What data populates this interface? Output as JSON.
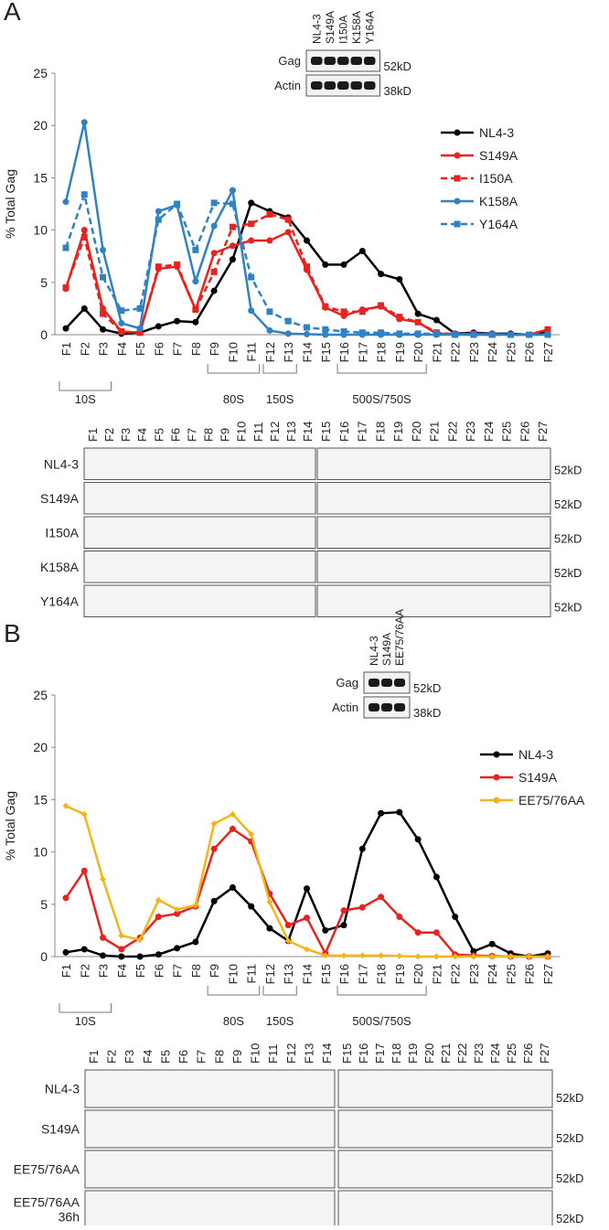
{
  "chart_data": [
    {
      "type": "line",
      "ylabel": "% Total Gag",
      "categories": [
        "F1",
        "F2",
        "F3",
        "F4",
        "F5",
        "F6",
        "F7",
        "F8",
        "F9",
        "F10",
        "F11",
        "F12",
        "F13",
        "F14",
        "F15",
        "F16",
        "F17",
        "F18",
        "F19",
        "F20",
        "F21",
        "F22",
        "F23",
        "F24",
        "F25",
        "F26",
        "F27"
      ],
      "ylim": [
        0,
        25
      ],
      "yticks": [
        0,
        5,
        10,
        15,
        20,
        25
      ],
      "series": [
        {
          "name": "NL4-3",
          "color": "#000000",
          "dash": false,
          "marker": "circle",
          "values": [
            0.6,
            2.5,
            0.5,
            0.1,
            0.2,
            0.8,
            1.3,
            1.2,
            4.2,
            7.2,
            12.6,
            11.8,
            11.2,
            9,
            6.7,
            6.7,
            8,
            5.8,
            5.3,
            2,
            1.4,
            0.1,
            0.2,
            0.1,
            0.1,
            0,
            0.3
          ]
        },
        {
          "name": "S149A",
          "color": "#e8231f",
          "dash": false,
          "marker": "circle",
          "values": [
            4.4,
            10,
            2.5,
            0.3,
            0.2,
            6.3,
            6.5,
            2.4,
            7.8,
            8.5,
            9,
            9,
            9.8,
            6.2,
            2.6,
            1.8,
            2.4,
            2.7,
            1.5,
            1.2,
            0.1,
            0.05,
            0.1,
            0.05,
            0,
            0,
            0.5
          ]
        },
        {
          "name": "I150A",
          "color": "#e8231f",
          "dash": true,
          "marker": "square",
          "values": [
            4.5,
            9.3,
            2,
            0.3,
            0.2,
            6.5,
            6.7,
            2.4,
            6,
            10.3,
            10.6,
            11.5,
            11,
            6.5,
            2.7,
            2.2,
            2.2,
            2.8,
            1.7,
            1.2,
            0.2,
            0.05,
            0,
            0,
            0,
            0,
            0.5
          ]
        },
        {
          "name": "K158A",
          "color": "#2f82c4",
          "dash": false,
          "marker": "circle",
          "values": [
            12.7,
            20.3,
            8.1,
            1.1,
            0.6,
            11.8,
            12.4,
            5.1,
            10.4,
            13.8,
            2.3,
            0.4,
            0.1,
            0.05,
            0,
            0,
            0,
            0,
            0,
            0,
            0,
            0,
            0,
            0,
            0,
            0,
            0
          ]
        },
        {
          "name": "Y164A",
          "color": "#2f82c4",
          "dash": true,
          "marker": "square",
          "values": [
            8.3,
            13.4,
            5.5,
            2.3,
            2.5,
            11,
            12.5,
            8.1,
            12.6,
            12.5,
            5.5,
            2.2,
            1.3,
            0.7,
            0.5,
            0.3,
            0.2,
            0.2,
            0.1,
            0.1,
            0.1,
            0,
            0,
            0,
            0,
            0,
            0
          ]
        }
      ]
    },
    {
      "type": "line",
      "ylabel": "% Total Gag",
      "categories": [
        "F1",
        "F2",
        "F3",
        "F4",
        "F5",
        "F6",
        "F7",
        "F8",
        "F9",
        "F10",
        "F11",
        "F12",
        "F13",
        "F14",
        "F15",
        "F16",
        "F17",
        "F18",
        "F19",
        "F20",
        "F21",
        "F22",
        "F23",
        "F24",
        "F25",
        "F26",
        "F27"
      ],
      "ylim": [
        0,
        25
      ],
      "yticks": [
        0,
        5,
        10,
        15,
        20,
        25
      ],
      "series": [
        {
          "name": "NL4-3",
          "color": "#000000",
          "dash": false,
          "marker": "circle",
          "values": [
            0.4,
            0.7,
            0.1,
            0,
            0,
            0.2,
            0.8,
            1.4,
            5.3,
            6.6,
            4.8,
            2.7,
            1.5,
            6.5,
            2.5,
            3,
            10.3,
            13.7,
            13.8,
            11.2,
            7.6,
            3.8,
            0.5,
            1.2,
            0.3,
            0,
            0.3
          ]
        },
        {
          "name": "S149A",
          "color": "#e8231f",
          "dash": false,
          "marker": "circle",
          "values": [
            5.6,
            8.2,
            1.8,
            0.7,
            1.8,
            3.8,
            4.1,
            4.8,
            10.3,
            12.2,
            11,
            6,
            3,
            3.7,
            0.3,
            4.4,
            4.7,
            5.7,
            3.8,
            2.3,
            2.3,
            0.2,
            0.1,
            0.05,
            0,
            0,
            0
          ]
        },
        {
          "name": "EE75/76AA",
          "color": "#f2b51a",
          "dash": false,
          "marker": "diamond",
          "values": [
            14.4,
            13.6,
            7.4,
            2,
            1.6,
            5.4,
            4.5,
            4.9,
            12.7,
            13.6,
            11.7,
            5.2,
            1.5,
            0.7,
            0.1,
            0.1,
            0.1,
            0.1,
            0.05,
            0,
            0,
            0,
            0,
            0,
            0,
            0,
            0
          ]
        }
      ]
    }
  ],
  "panels": [
    {
      "label": "A",
      "inset": {
        "lanes": [
          {
            "text": "NL4-3",
            "color": "#000000"
          },
          {
            "text": "S149A",
            "color": "#e8231f"
          },
          {
            "text": "I150A",
            "color": "#e8231f"
          },
          {
            "text": "K158A",
            "color": "#2f82c4"
          },
          {
            "text": "Y164A",
            "color": "#2f82c4"
          }
        ],
        "rows": [
          "Gag",
          "Actin"
        ],
        "markers": [
          "52kD",
          "38kD"
        ]
      },
      "sedimentation": [
        "10S",
        "80S",
        "150S",
        "500S/750S"
      ],
      "blot": {
        "rows": [
          {
            "lines": [
              "NL4-3"
            ],
            "color": "#000000"
          },
          {
            "lines": [
              "S149A"
            ],
            "color": "#e8231f"
          },
          {
            "lines": [
              "I150A"
            ],
            "color": "#e8231f"
          },
          {
            "lines": [
              "K158A"
            ],
            "color": "#2f82c4"
          },
          {
            "lines": [
              "Y164A"
            ],
            "color": "#2f82c4"
          }
        ],
        "marker": "52kD"
      }
    },
    {
      "label": "B",
      "inset": {
        "lanes": [
          {
            "text": "NL4-3",
            "color": "#000000"
          },
          {
            "text": "S149A",
            "color": "#e8231f"
          },
          {
            "text": "EE75/76AA",
            "color": "#f2b51a"
          }
        ],
        "rows": [
          "Gag",
          "Actin"
        ],
        "markers": [
          "52kD",
          "38kD"
        ]
      },
      "sedimentation": [
        "10S",
        "80S",
        "150S",
        "500S/750S"
      ],
      "blot": {
        "rows": [
          {
            "lines": [
              "NL4-3"
            ],
            "color": "#000000"
          },
          {
            "lines": [
              "S149A"
            ],
            "color": "#e8231f"
          },
          {
            "lines": [
              "EE75/76AA"
            ],
            "color": "#f2b51a"
          },
          {
            "lines": [
              "EE75/76AA",
              "36h"
            ],
            "color": "#f2b51a"
          }
        ],
        "marker": "52kD"
      }
    }
  ]
}
